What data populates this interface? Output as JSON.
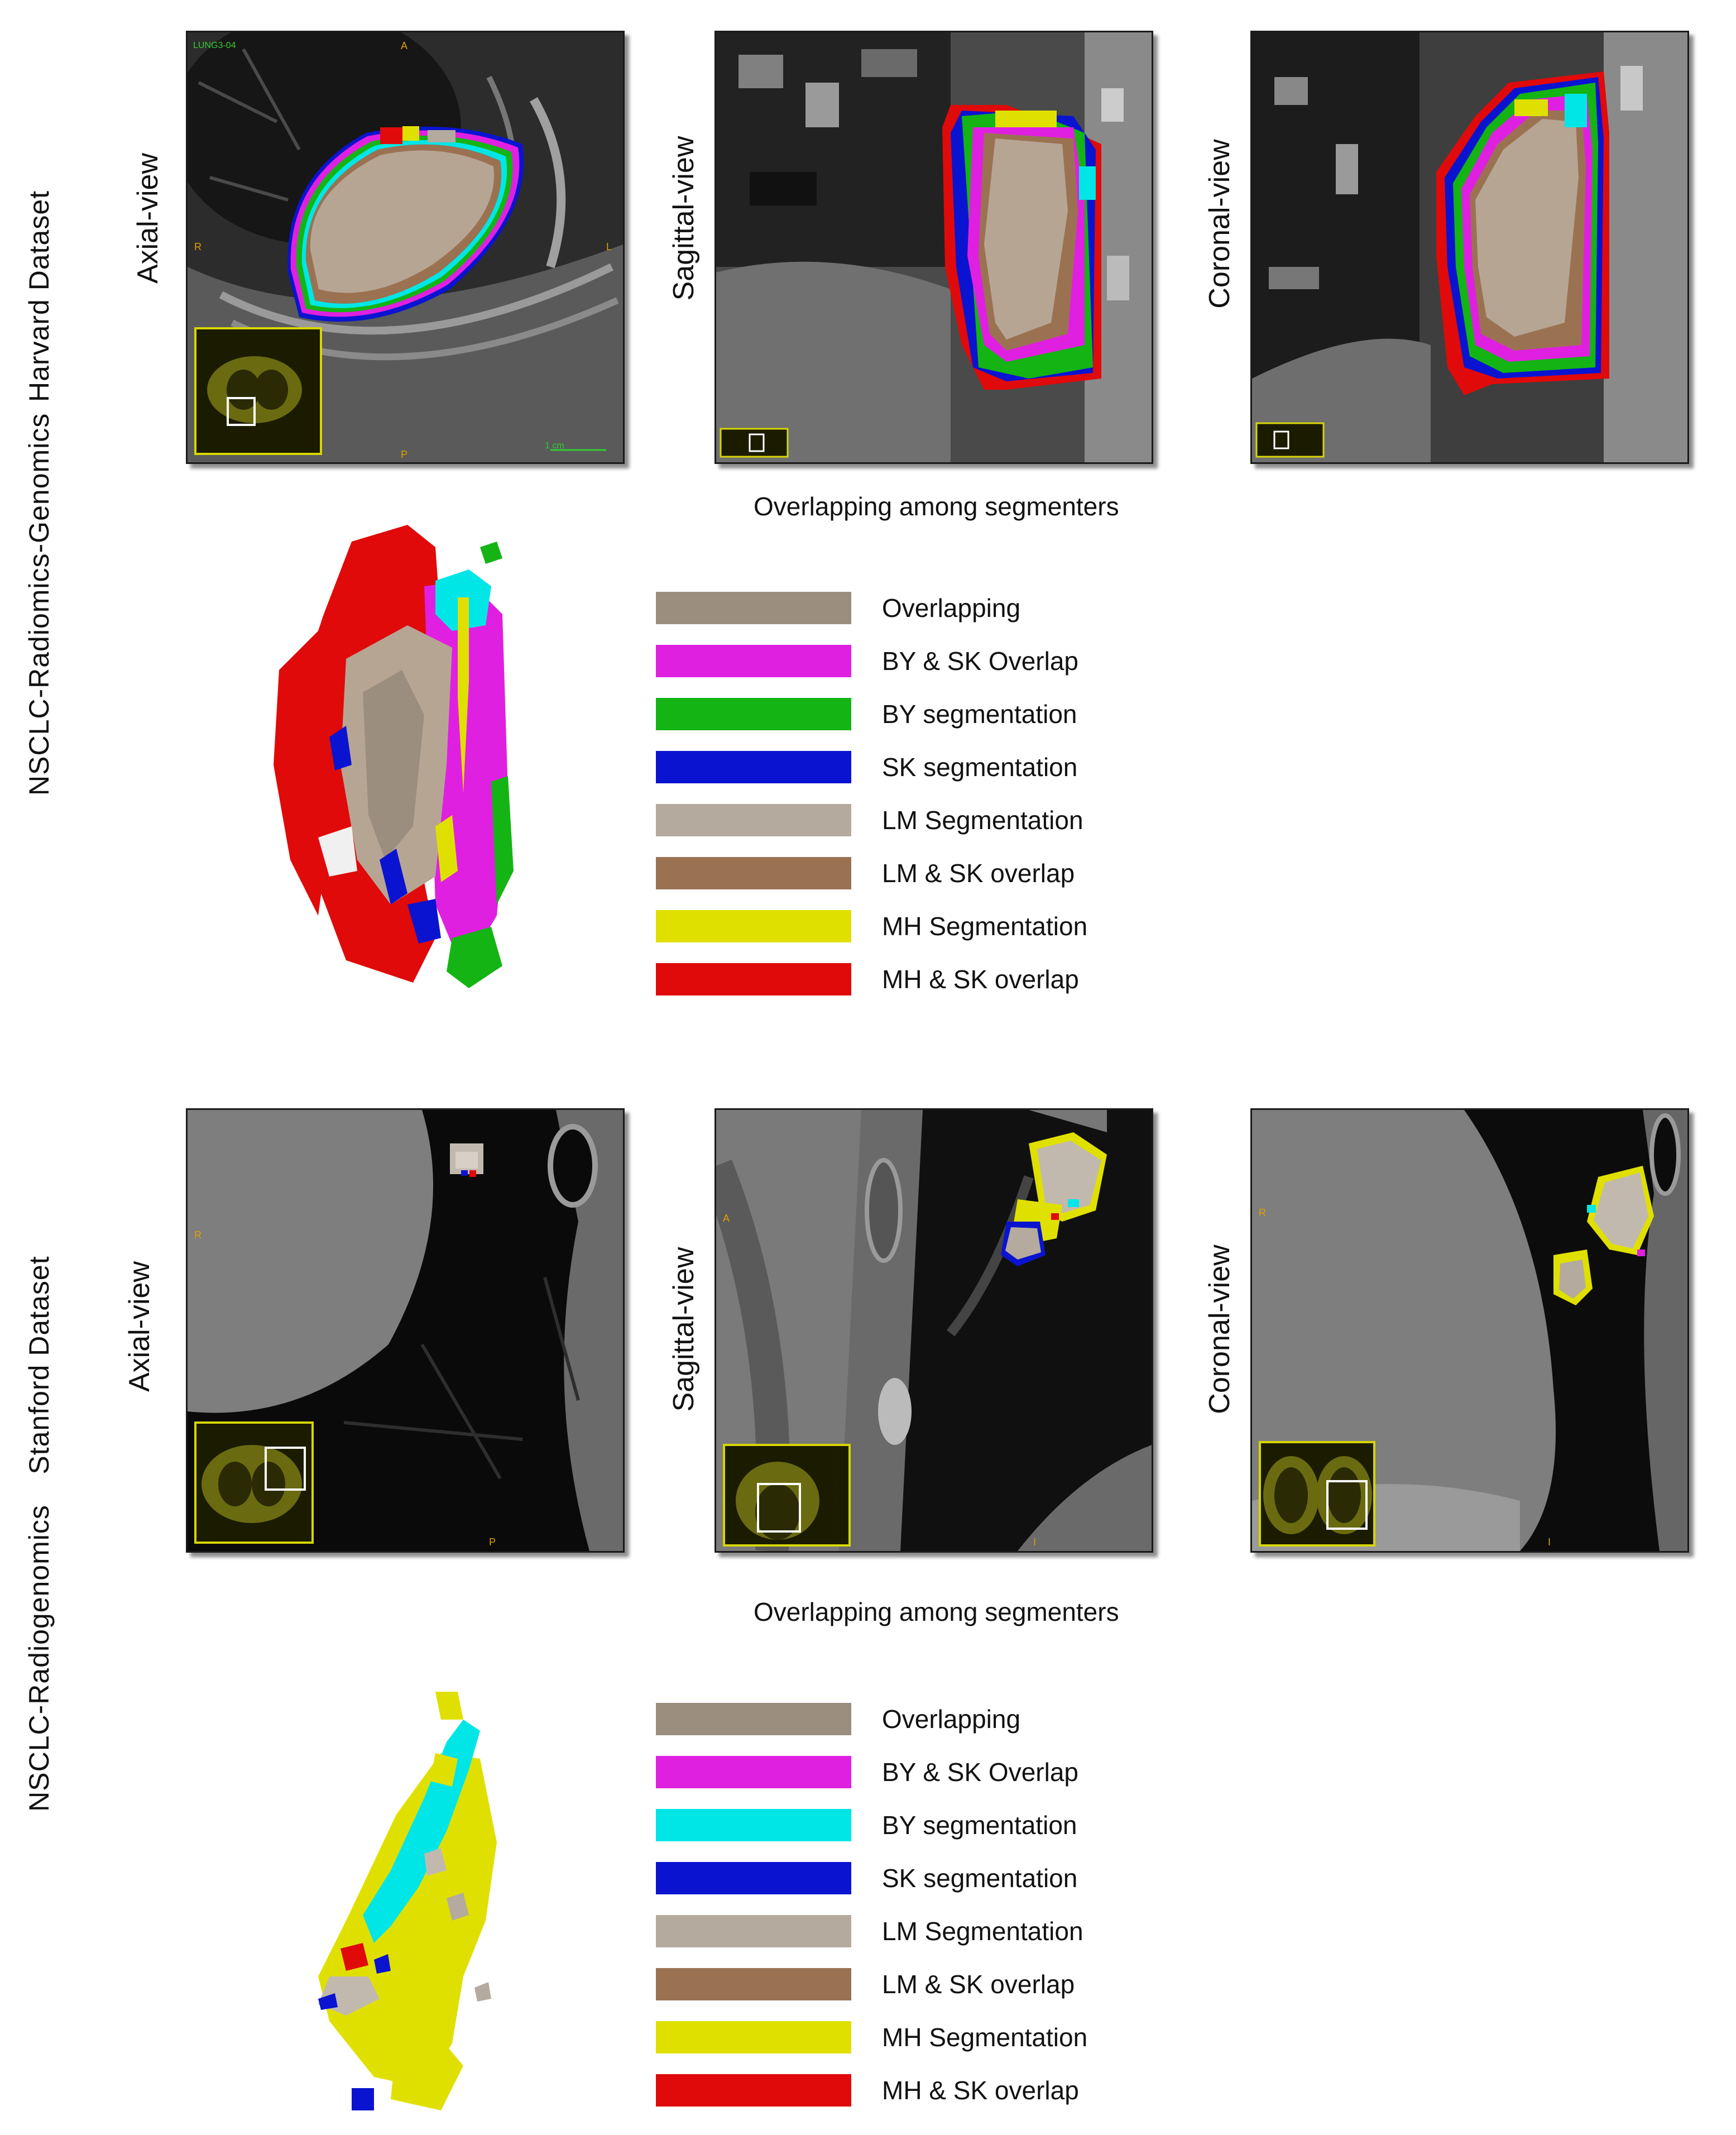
{
  "sections": [
    {
      "dataset_title": "Harvard Dataset",
      "collection_title": "NSCLC-Radiomics-Genomics",
      "views": {
        "axial": "Axial-view",
        "sagittal": "Sagittal-view",
        "coronal": "Coronal-view"
      },
      "scan_markers": {
        "patient_id": "LUNG3-04",
        "anterior": "A",
        "posterior": "P",
        "right": "R",
        "left": "L",
        "scale_bar": "1 cm"
      },
      "legend_title": "Overlapping among segmenters",
      "legend": [
        {
          "label": "Overlapping",
          "color": "#9c8e7e"
        },
        {
          "label": "BY & SK Overlap",
          "color": "#e020e0"
        },
        {
          "label": "BY segmentation",
          "color": "#14b414"
        },
        {
          "label": "SK segmentation",
          "color": "#0a14d0"
        },
        {
          "label": "LM Segmentation",
          "color": "#b4aa9e"
        },
        {
          "label": "LM & SK overlap",
          "color": "#9a7252"
        },
        {
          "label": "MH Segmentation",
          "color": "#e0e000"
        },
        {
          "label": "MH & SK overlap",
          "color": "#e00a0a"
        }
      ]
    },
    {
      "dataset_title": "Stanford Dataset",
      "collection_title": "NSCLC-Radiogenomics",
      "views": {
        "axial": "Axial-view",
        "sagittal": "Sagittal-view",
        "coronal": "Coronal-view"
      },
      "scan_markers": {
        "right": "R",
        "posterior": "P",
        "anterior": "A",
        "inferior": "I"
      },
      "legend_title": "Overlapping among segmenters",
      "legend": [
        {
          "label": "Overlapping",
          "color": "#9c8e7e"
        },
        {
          "label": "BY & SK Overlap",
          "color": "#e020e0"
        },
        {
          "label": "BY segmentation",
          "color": "#00e6e6"
        },
        {
          "label": "SK segmentation",
          "color": "#0a14d0"
        },
        {
          "label": "LM Segmentation",
          "color": "#b4aa9e"
        },
        {
          "label": "LM & SK overlap",
          "color": "#9a7252"
        },
        {
          "label": "MH Segmentation",
          "color": "#e0e000"
        },
        {
          "label": "MH & SK overlap",
          "color": "#e00a0a"
        }
      ]
    }
  ]
}
